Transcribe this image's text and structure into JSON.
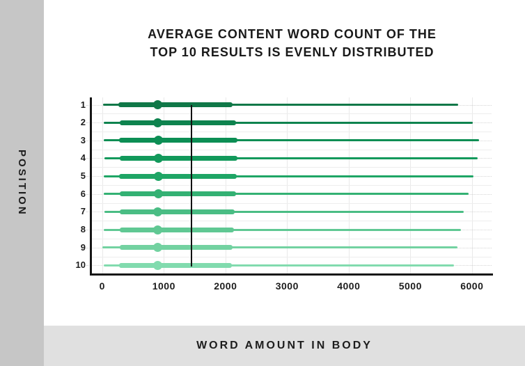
{
  "header": {
    "line1": "AVERAGE CONTENT WORD COUNT OF THE",
    "line2": "TOP 10 RESULTS IS EVENLY DISTRIBUTED"
  },
  "y_axis_title": "POSITION",
  "x_axis_title": "WORD AMOUNT IN BODY",
  "colors": {
    "sidebar_bg": "#c6c6c6",
    "bottombar_bg": "#e0e0e0",
    "axis": "#151515",
    "mean_line": "#111111",
    "text": "#1d1d1d"
  },
  "chart_data": {
    "type": "box-whisker-horizontal",
    "title": "AVERAGE CONTENT WORD COUNT OF THE TOP 10 RESULTS IS EVENLY DISTRIBUTED",
    "xlabel": "WORD AMOUNT IN BODY",
    "ylabel": "POSITION",
    "x_ticks": [
      0,
      1000,
      2000,
      3000,
      4000,
      5000,
      6000
    ],
    "x_range": [
      0,
      6350
    ],
    "grid": true,
    "mean_line_value": 1447,
    "rows": [
      {
        "position": "1",
        "min": 10,
        "q1": 260,
        "median": 900,
        "q3": 2120,
        "max": 5780,
        "color": "#107848"
      },
      {
        "position": "2",
        "min": 20,
        "q1": 280,
        "median": 905,
        "q3": 2170,
        "max": 6010,
        "color": "#0e834e"
      },
      {
        "position": "3",
        "min": 25,
        "q1": 275,
        "median": 910,
        "q3": 2200,
        "max": 6120,
        "color": "#0c8e54"
      },
      {
        "position": "4",
        "min": 35,
        "q1": 280,
        "median": 910,
        "q3": 2190,
        "max": 6090,
        "color": "#12995b"
      },
      {
        "position": "5",
        "min": 25,
        "q1": 275,
        "median": 915,
        "q3": 2185,
        "max": 6020,
        "color": "#1ea565"
      },
      {
        "position": "6",
        "min": 20,
        "q1": 290,
        "median": 910,
        "q3": 2170,
        "max": 5950,
        "color": "#33b173"
      },
      {
        "position": "7",
        "min": 35,
        "q1": 290,
        "median": 905,
        "q3": 2150,
        "max": 5870,
        "color": "#4abd84"
      },
      {
        "position": "8",
        "min": 20,
        "q1": 280,
        "median": 905,
        "q3": 2140,
        "max": 5820,
        "color": "#60c893"
      },
      {
        "position": "9",
        "min": 0,
        "q1": 280,
        "median": 900,
        "q3": 2120,
        "max": 5760,
        "color": "#73d2a1"
      },
      {
        "position": "10",
        "min": 25,
        "q1": 275,
        "median": 900,
        "q3": 2100,
        "max": 5710,
        "color": "#81dbae"
      }
    ]
  }
}
